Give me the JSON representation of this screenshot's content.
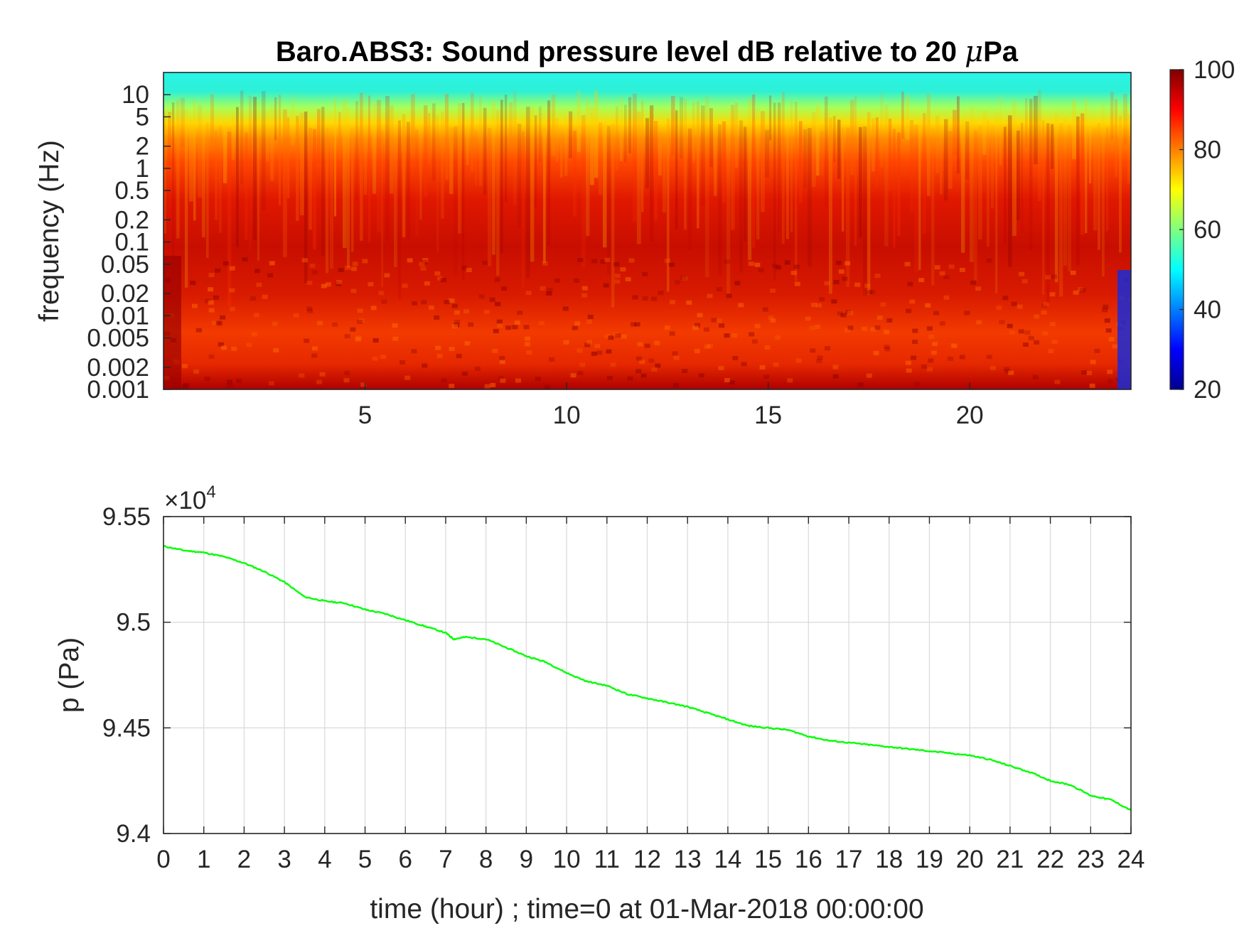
{
  "chart_data": [
    {
      "type": "heatmap",
      "title_prefix": "Baro.ABS3: Sound pressure level dB relative to 20 ",
      "title_unit_greek": "μ",
      "title_suffix": "Pa",
      "xlabel": "",
      "ylabel": "frequency (Hz)",
      "xlim": [
        0,
        24
      ],
      "x_ticks": [
        5,
        10,
        15,
        20
      ],
      "y_scale": "log",
      "ylim": [
        0.001,
        20
      ],
      "y_ticks": [
        0.001,
        0.002,
        0.005,
        0.01,
        0.02,
        0.05,
        0.1,
        0.2,
        0.5,
        1,
        2,
        5,
        10
      ],
      "y_tick_labels": [
        "0.001",
        "0.002",
        "0.005",
        "0.01",
        "0.02",
        "0.05",
        "0.1",
        "0.2",
        "0.5",
        "1",
        "2",
        "5",
        "10"
      ],
      "colormap": "jet",
      "clim": [
        20,
        100
      ],
      "colorbar_ticks": [
        20,
        40,
        60,
        80,
        100
      ],
      "colorbar_tick_labels": [
        "20",
        "40",
        "60",
        "80",
        "100"
      ],
      "colorbar_placement": "right",
      "levels_by_frequency": [
        {
          "frequency": 10,
          "level": 52
        },
        {
          "frequency": 5,
          "level": 60
        },
        {
          "frequency": 2,
          "level": 72
        },
        {
          "frequency": 1,
          "level": 80
        },
        {
          "frequency": 0.5,
          "level": 85
        },
        {
          "frequency": 0.1,
          "level": 90
        },
        {
          "frequency": 0.01,
          "level": 90
        },
        {
          "frequency": 0.002,
          "level": 86
        },
        {
          "frequency": 0.001,
          "level": 88
        }
      ],
      "grid": false
    },
    {
      "type": "line",
      "title": "",
      "xlabel": "time (hour) ; time=0 at 01-Mar-2018 00:00:00",
      "ylabel": "p (Pa)",
      "xlim": [
        0,
        24
      ],
      "ylim": [
        94000,
        95500
      ],
      "x_ticks": [
        0,
        1,
        2,
        3,
        4,
        5,
        6,
        7,
        8,
        9,
        10,
        11,
        12,
        13,
        14,
        15,
        16,
        17,
        18,
        19,
        20,
        21,
        22,
        23,
        24
      ],
      "y_ticks": [
        94000,
        94500,
        95000,
        95500
      ],
      "y_tick_labels": [
        "9.4",
        "9.45",
        "9.5",
        "9.55"
      ],
      "y_exponent_base": "×10",
      "y_exponent_power": "4",
      "grid": true,
      "series": [
        {
          "color": "#00ff00",
          "x": [
            0,
            0.5,
            1,
            1.5,
            2,
            2.5,
            3,
            3.5,
            4,
            4.5,
            5,
            5.5,
            6,
            6.5,
            7,
            7.2,
            7.5,
            8,
            8.5,
            9,
            9.5,
            10,
            10.5,
            11,
            11.5,
            12,
            12.5,
            13,
            13.5,
            14,
            14.5,
            15,
            15.5,
            16,
            16.5,
            17,
            17.5,
            18,
            18.5,
            19,
            19.5,
            20,
            20.5,
            21,
            21.5,
            22,
            22.5,
            23,
            23.5,
            24
          ],
          "y": [
            95360,
            95340,
            95330,
            95310,
            95280,
            95240,
            95190,
            95120,
            95100,
            95090,
            95060,
            95040,
            95010,
            94980,
            94950,
            94920,
            94930,
            94920,
            94880,
            94840,
            94810,
            94760,
            94720,
            94700,
            94660,
            94640,
            94620,
            94600,
            94570,
            94540,
            94510,
            94500,
            94490,
            94460,
            94440,
            94430,
            94420,
            94410,
            94400,
            94390,
            94380,
            94370,
            94350,
            94320,
            94290,
            94250,
            94230,
            94180,
            94160,
            94110
          ]
        }
      ]
    }
  ]
}
